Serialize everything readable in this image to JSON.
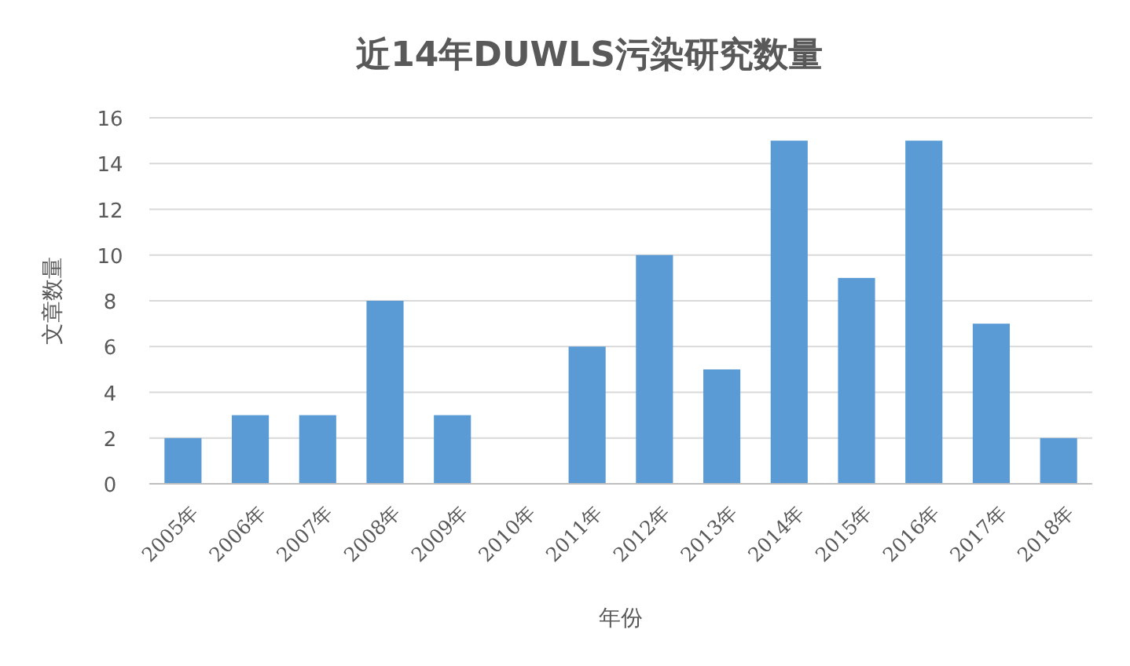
{
  "chart_data": {
    "type": "bar",
    "title": "近14年DUWLS污染研究数量",
    "xlabel": "年份",
    "ylabel": "文章数量",
    "categories": [
      "2005年",
      "2006年",
      "2007年",
      "2008年",
      "2009年",
      "2010年",
      "2011年",
      "2012年",
      "2013年",
      "2014年",
      "2015年",
      "2016年",
      "2017年",
      "2018年"
    ],
    "values": [
      2,
      3,
      3,
      8,
      3,
      0,
      6,
      10,
      5,
      15,
      9,
      15,
      7,
      2
    ],
    "color": "#5b9bd5",
    "ylim": [
      0,
      16
    ],
    "yticks": [
      0,
      2,
      4,
      6,
      8,
      10,
      12,
      14,
      16
    ],
    "grid": "y"
  }
}
